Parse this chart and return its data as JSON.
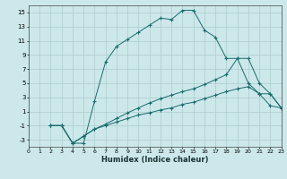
{
  "xlabel": "Humidex (Indice chaleur)",
  "bg_color": "#cce8ea",
  "grid_color": "#aacccc",
  "line_color": "#1a6b6b",
  "xlim": [
    0,
    23
  ],
  "ylim": [
    -4,
    16
  ],
  "xticks": [
    0,
    1,
    2,
    3,
    4,
    5,
    6,
    7,
    8,
    9,
    10,
    11,
    12,
    13,
    14,
    15,
    16,
    17,
    18,
    19,
    20,
    21,
    22,
    23
  ],
  "yticks": [
    -3,
    -1,
    1,
    3,
    5,
    7,
    9,
    11,
    13,
    15
  ],
  "line1_x": [
    2,
    3,
    4,
    5,
    6,
    7,
    8,
    9,
    10,
    11,
    12,
    13,
    14,
    15,
    16,
    17,
    18,
    19,
    20,
    21,
    22,
    23
  ],
  "line1_y": [
    -1,
    -1,
    -3.5,
    -3.5,
    2.5,
    8.0,
    10.2,
    11.2,
    12.2,
    13.2,
    14.2,
    14.0,
    15.3,
    15.3,
    12.5,
    11.5,
    8.5,
    8.5,
    8.5,
    5.0,
    3.5,
    1.5
  ],
  "line2_x": [
    2,
    3,
    4,
    5,
    6,
    7,
    8,
    9,
    10,
    11,
    12,
    13,
    14,
    15,
    16,
    17,
    18,
    19,
    20,
    21,
    22,
    23
  ],
  "line2_y": [
    -1,
    -1,
    -3.5,
    -2.5,
    -1.5,
    -0.8,
    0.0,
    0.8,
    1.5,
    2.2,
    2.8,
    3.3,
    3.8,
    4.2,
    4.8,
    5.5,
    6.2,
    8.5,
    5.0,
    3.5,
    3.5,
    1.5
  ],
  "line3_x": [
    2,
    3,
    4,
    5,
    6,
    7,
    8,
    9,
    10,
    11,
    12,
    13,
    14,
    15,
    16,
    17,
    18,
    19,
    20,
    21,
    22,
    23
  ],
  "line3_y": [
    -1,
    -1,
    -3.5,
    -2.5,
    -1.5,
    -1.0,
    -0.5,
    0.0,
    0.5,
    0.8,
    1.2,
    1.5,
    2.0,
    2.3,
    2.8,
    3.3,
    3.8,
    4.2,
    4.5,
    3.5,
    1.8,
    1.5
  ]
}
